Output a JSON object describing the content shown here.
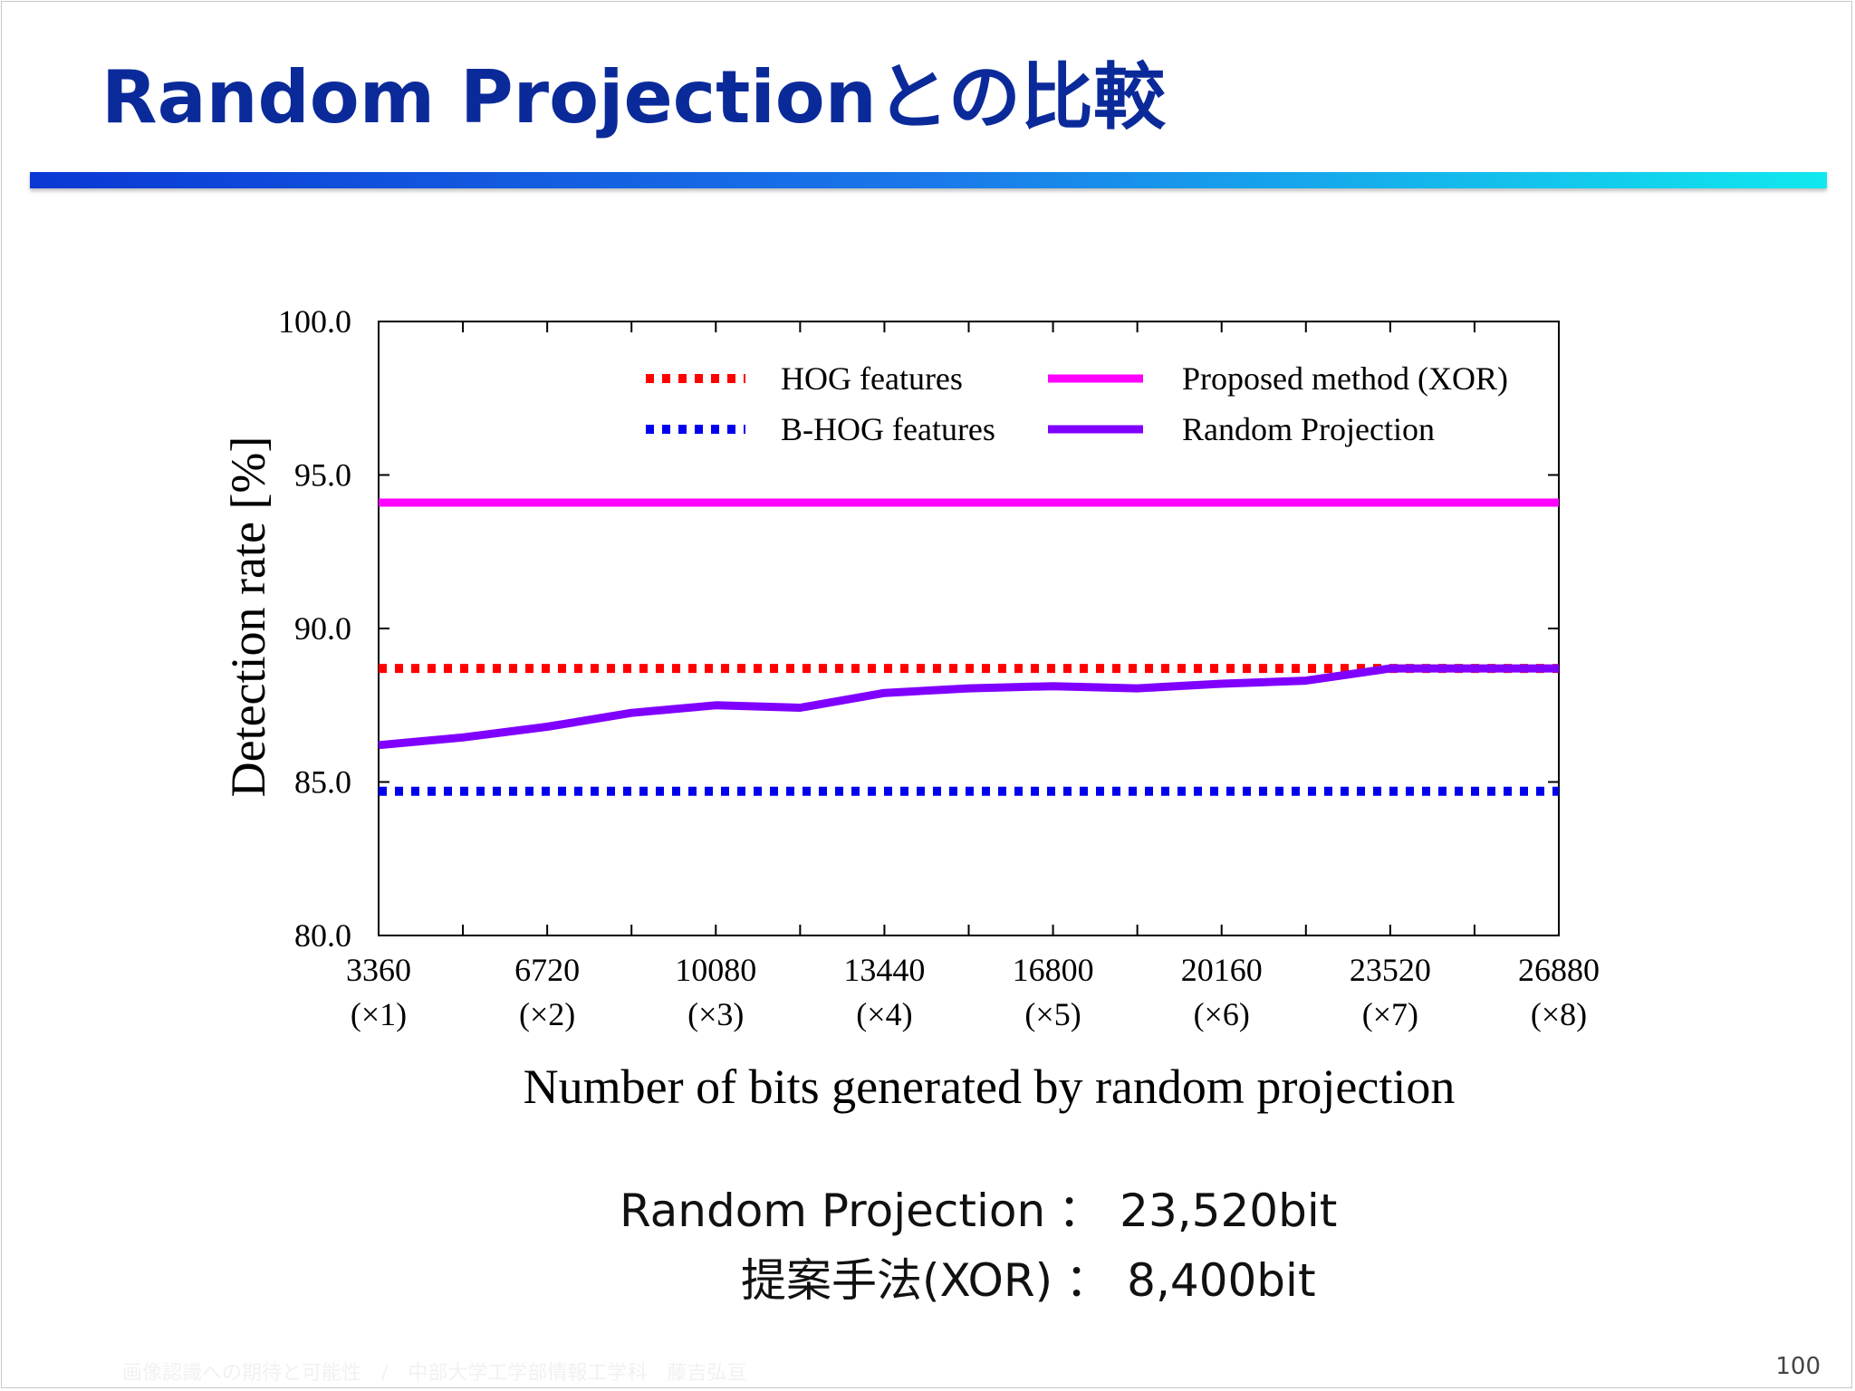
{
  "slide": {
    "title": "Random Projectionとの比較",
    "page_number": "100",
    "footer": "画像認識への期待と可能性　/　中部大学工学部情報工学科　藤吉弘亘"
  },
  "summary": [
    {
      "key": "Random Projection",
      "sep": "：",
      "value": "23,520bit"
    },
    {
      "key": "提案手法(XOR)",
      "sep": "：",
      "value": "8,400bit"
    }
  ],
  "colors": {
    "title": "#0b2a9a",
    "hog": "#ff0000",
    "bhog": "#0000ee",
    "proposed": "#ff00ff",
    "random_projection": "#8000ff"
  },
  "chart_data": {
    "type": "line",
    "title": "",
    "xlabel": "Number of bits generated by random projection",
    "ylabel": "Detection rate [%]",
    "ylim": [
      80.0,
      100.0
    ],
    "xlim": [
      3360,
      26880
    ],
    "yticks": [
      "80.0",
      "85.0",
      "90.0",
      "95.0",
      "100.0"
    ],
    "xtick_values": [
      3360,
      6720,
      10080,
      13440,
      16800,
      20160,
      23520,
      26880
    ],
    "xtick_labels": [
      "3360",
      "6720",
      "10080",
      "13440",
      "16800",
      "20160",
      "23520",
      "26880"
    ],
    "xtick_sublabels": [
      "(×1)",
      "(×2)",
      "(×3)",
      "(×4)",
      "(×5)",
      "(×6)",
      "(×7)",
      "(×8)"
    ],
    "grid": false,
    "legend_position": "top-right",
    "series": [
      {
        "name": "HOG features",
        "style": "dotted",
        "color": "#ff0000",
        "x": [
          3360,
          26880
        ],
        "values": [
          88.7,
          88.7
        ]
      },
      {
        "name": "B-HOG features",
        "style": "dotted",
        "color": "#0000ee",
        "x": [
          3360,
          26880
        ],
        "values": [
          84.7,
          84.7
        ]
      },
      {
        "name": "Proposed method (XOR)",
        "style": "solid",
        "color": "#ff00ff",
        "x": [
          3360,
          26880
        ],
        "values": [
          94.1,
          94.1
        ]
      },
      {
        "name": "Random Projection",
        "style": "solid",
        "color": "#8000ff",
        "x": [
          3360,
          5040,
          6720,
          8400,
          10080,
          11760,
          13440,
          15120,
          16800,
          18480,
          20160,
          21840,
          23520,
          25200,
          26880
        ],
        "values": [
          86.2,
          86.45,
          86.8,
          87.25,
          87.5,
          87.42,
          87.9,
          88.05,
          88.12,
          88.05,
          88.2,
          88.3,
          88.7,
          88.7,
          88.7
        ]
      }
    ]
  }
}
